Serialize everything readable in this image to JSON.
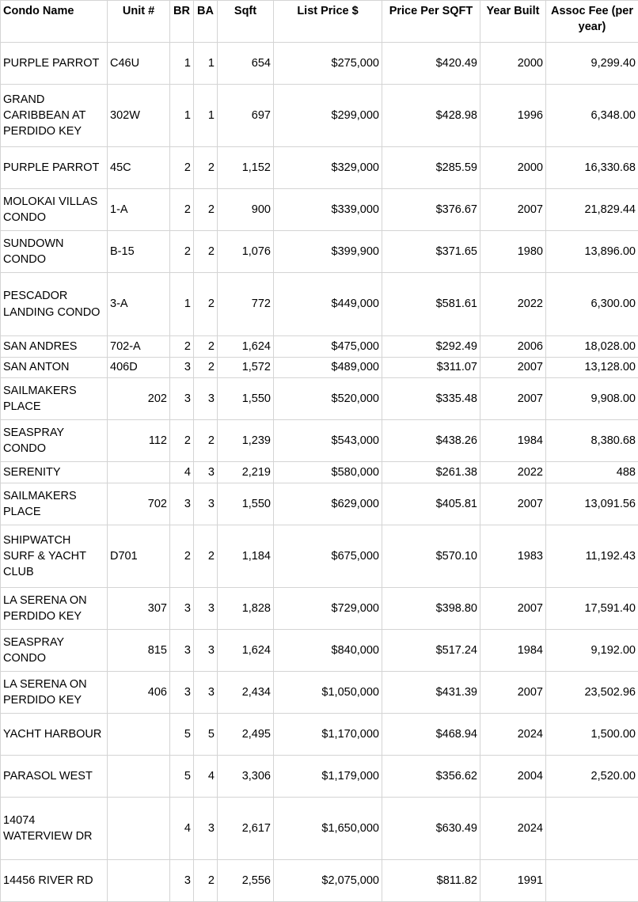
{
  "table": {
    "headers": [
      "Condo Name",
      "Unit #",
      "BR",
      "BA",
      "Sqft",
      "List Price $",
      "Price Per SQFT",
      "Year Built",
      "Assoc Fee (per year)"
    ],
    "rows": [
      [
        "PURPLE PARROT",
        "C46U",
        "1",
        "1",
        "654",
        "$275,000",
        "$420.49",
        "2000",
        "9,299.40"
      ],
      [
        "GRAND CARIBBEAN AT PERDIDO KEY",
        "302W",
        "1",
        "1",
        "697",
        "$299,000",
        "$428.98",
        "1996",
        "6,348.00"
      ],
      [
        "PURPLE PARROT",
        "45C",
        "2",
        "2",
        "1,152",
        "$329,000",
        "$285.59",
        "2000",
        "16,330.68"
      ],
      [
        "MOLOKAI VILLAS CONDO",
        "1-A",
        "2",
        "2",
        "900",
        "$339,000",
        "$376.67",
        "2007",
        "21,829.44"
      ],
      [
        "SUNDOWN CONDO",
        "B-15",
        "2",
        "2",
        "1,076",
        "$399,900",
        "$371.65",
        "1980",
        "13,896.00"
      ],
      [
        "PESCADOR LANDING CONDO",
        "3-A",
        "1",
        "2",
        "772",
        "$449,000",
        "$581.61",
        "2022",
        "6,300.00"
      ],
      [
        "SAN ANDRES",
        "702-A",
        "2",
        "2",
        "1,624",
        "$475,000",
        "$292.49",
        "2006",
        "18,028.00"
      ],
      [
        "SAN ANTON",
        "406D",
        "3",
        "2",
        "1,572",
        "$489,000",
        "$311.07",
        "2007",
        "13,128.00"
      ],
      [
        "SAILMAKERS PLACE",
        "202",
        "3",
        "3",
        "1,550",
        "$520,000",
        "$335.48",
        "2007",
        "9,908.00"
      ],
      [
        "SEASPRAY CONDO",
        "112",
        "2",
        "2",
        "1,239",
        "$543,000",
        "$438.26",
        "1984",
        "8,380.68"
      ],
      [
        "SERENITY",
        null,
        "4",
        "3",
        "2,219",
        "$580,000",
        "$261.38",
        "2022",
        "488"
      ],
      [
        "SAILMAKERS PLACE",
        "702",
        "3",
        "3",
        "1,550",
        "$629,000",
        "$405.81",
        "2007",
        "13,091.56"
      ],
      [
        "SHIPWATCH SURF & YACHT CLUB",
        "D701",
        "2",
        "2",
        "1,184",
        "$675,000",
        "$570.10",
        "1983",
        "11,192.43"
      ],
      [
        "LA SERENA ON PERDIDO KEY",
        "307",
        "3",
        "3",
        "1,828",
        "$729,000",
        "$398.80",
        "2007",
        "17,591.40"
      ],
      [
        "SEASPRAY CONDO",
        "815",
        "3",
        "3",
        "1,624",
        "$840,000",
        "$517.24",
        "1984",
        "9,192.00"
      ],
      [
        "LA SERENA ON PERDIDO KEY",
        "406",
        "3",
        "3",
        "2,434",
        "$1,050,000",
        "$431.39",
        "2007",
        "23,502.96"
      ],
      [
        "YACHT HARBOUR",
        null,
        "5",
        "5",
        "2,495",
        "$1,170,000",
        "$468.94",
        "2024",
        "1,500.00"
      ],
      [
        "PARASOL WEST",
        null,
        "5",
        "4",
        "3,306",
        "$1,179,000",
        "$356.62",
        "2004",
        "2,520.00"
      ],
      [
        "14074 WATERVIEW DR",
        null,
        "4",
        "3",
        "2,617",
        "$1,650,000",
        "$630.49",
        "2024",
        null
      ],
      [
        "14456 RIVER RD",
        null,
        "3",
        "2",
        "2,556",
        "$2,075,000",
        "$811.82",
        "1991",
        null
      ]
    ]
  }
}
